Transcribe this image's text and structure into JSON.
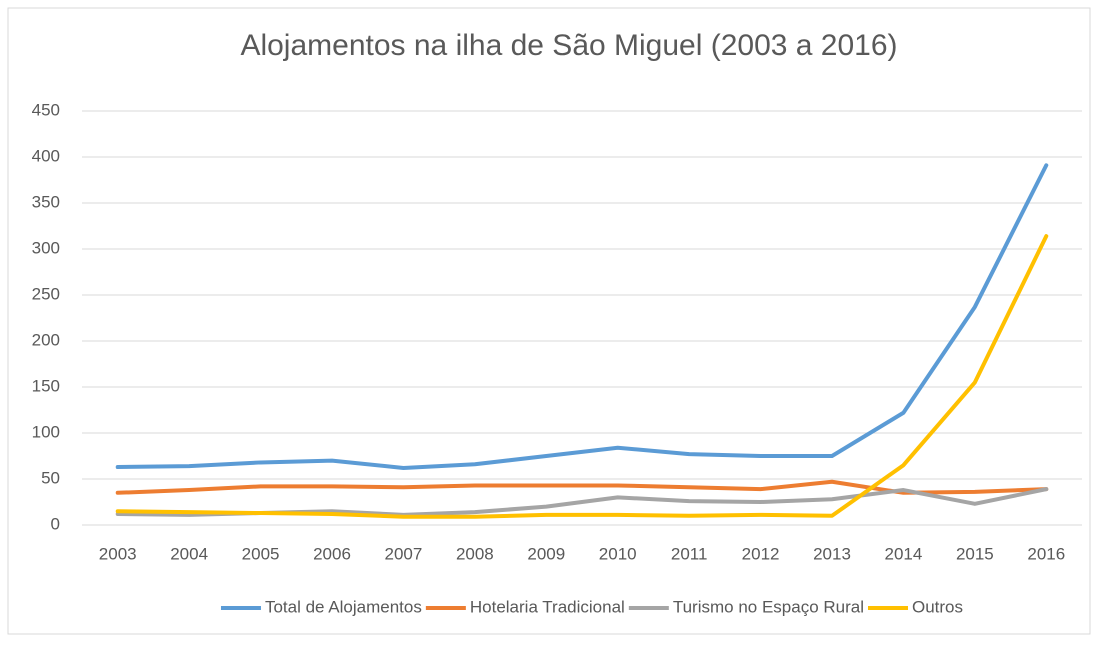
{
  "chart_data": {
    "type": "line",
    "title": "Alojamentos na ilha de São Miguel (2003 a 2016)",
    "categories": [
      "2003",
      "2004",
      "2005",
      "2006",
      "2007",
      "2008",
      "2009",
      "2010",
      "2011",
      "2012",
      "2013",
      "2014",
      "2015",
      "2016"
    ],
    "series": [
      {
        "name": "Total de Alojamentos",
        "color": "#5b9bd5",
        "values": [
          63,
          64,
          68,
          70,
          62,
          66,
          75,
          84,
          77,
          75,
          75,
          122,
          237,
          391
        ]
      },
      {
        "name": "Hotelaria Tradicional",
        "color": "#ed7d31",
        "values": [
          35,
          38,
          42,
          42,
          41,
          43,
          43,
          43,
          41,
          39,
          47,
          35,
          36,
          39
        ]
      },
      {
        "name": "Turismo no Espaço Rural",
        "color": "#a5a5a5",
        "values": [
          12,
          11,
          13,
          15,
          11,
          14,
          20,
          30,
          26,
          25,
          28,
          38,
          23,
          39
        ]
      },
      {
        "name": "Outros",
        "color": "#ffc000",
        "values": [
          15,
          14,
          13,
          12,
          9,
          9,
          11,
          11,
          10,
          11,
          10,
          65,
          155,
          314
        ]
      }
    ],
    "ylim": [
      0,
      450
    ],
    "yticks": [
      0,
      50,
      100,
      150,
      200,
      250,
      300,
      350,
      400,
      450
    ],
    "grid": true,
    "legend": "bottom"
  }
}
